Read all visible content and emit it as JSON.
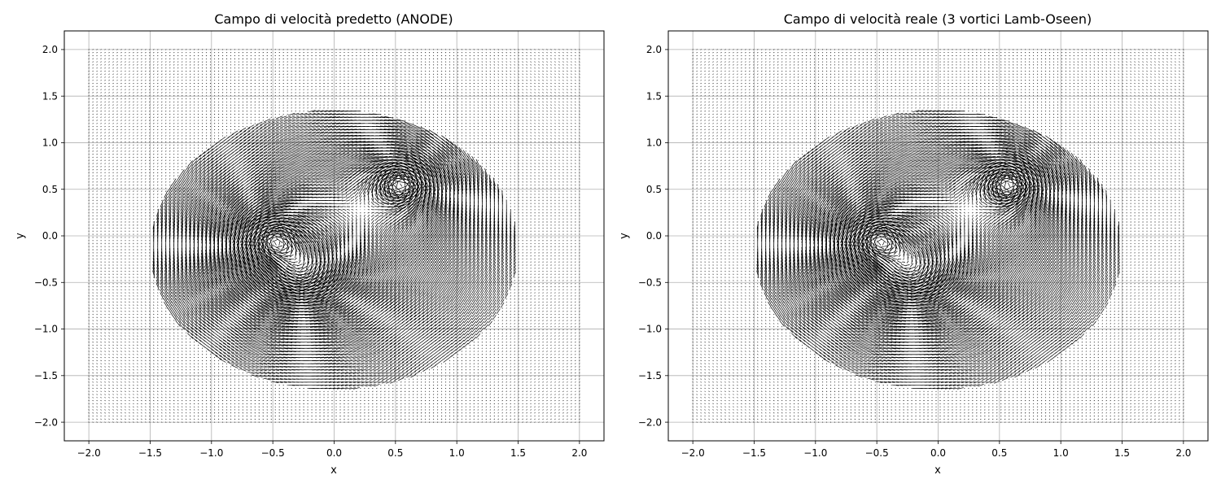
{
  "chart_data": [
    {
      "type": "quiver",
      "title": "Campo di velocità predetto (ANODE)",
      "xlabel": "x",
      "ylabel": "y",
      "xlim": [
        -2.2,
        2.2
      ],
      "ylim": [
        -2.2,
        2.2
      ],
      "xticks": [
        -2.0,
        -1.5,
        -1.0,
        -0.5,
        0.0,
        0.5,
        1.0,
        1.5,
        2.0
      ],
      "yticks": [
        -2.0,
        -1.5,
        -1.0,
        -0.5,
        0.0,
        0.5,
        1.0,
        1.5,
        2.0
      ],
      "xtick_labels": [
        "−2.0",
        "−1.5",
        "−1.0",
        "−0.5",
        "0.0",
        "0.5",
        "1.0",
        "1.5",
        "2.0"
      ],
      "ytick_labels": [
        "−2.0",
        "−1.5",
        "−1.0",
        "−0.5",
        "0.0",
        "0.5",
        "1.0",
        "1.5",
        "2.0"
      ],
      "grid": true,
      "arrow_color": "#000000",
      "field_domain": {
        "x": [
          -2.0,
          2.0
        ],
        "y": [
          -2.0,
          2.0
        ]
      },
      "vortices": [
        {
          "x": -0.5,
          "y": -0.05,
          "core_radius": 0.12
        },
        {
          "x": -0.25,
          "y": -0.38,
          "core_radius": 0.2
        },
        {
          "x": 0.55,
          "y": 0.55,
          "core_radius": 0.1
        }
      ]
    },
    {
      "type": "quiver",
      "title": "Campo di velocità reale (3 vortici Lamb-Oseen)",
      "xlabel": "x",
      "ylabel": "y",
      "xlim": [
        -2.2,
        2.2
      ],
      "ylim": [
        -2.2,
        2.2
      ],
      "xticks": [
        -2.0,
        -1.5,
        -1.0,
        -0.5,
        0.0,
        0.5,
        1.0,
        1.5,
        2.0
      ],
      "yticks": [
        -2.0,
        -1.5,
        -1.0,
        -0.5,
        0.0,
        0.5,
        1.0,
        1.5,
        2.0
      ],
      "xtick_labels": [
        "−2.0",
        "−1.5",
        "−1.0",
        "−0.5",
        "0.0",
        "0.5",
        "1.0",
        "1.5",
        "2.0"
      ],
      "ytick_labels": [
        "−2.0",
        "−1.5",
        "−1.0",
        "−0.5",
        "0.0",
        "0.5",
        "1.0",
        "1.5",
        "2.0"
      ],
      "grid": true,
      "arrow_color": "#000000",
      "field_domain": {
        "x": [
          -2.0,
          2.0
        ],
        "y": [
          -2.0,
          2.0
        ]
      },
      "vortices": [
        {
          "x": -0.5,
          "y": -0.05,
          "core_radius": 0.12
        },
        {
          "x": -0.2,
          "y": -0.38,
          "core_radius": 0.2
        },
        {
          "x": 0.58,
          "y": 0.55,
          "core_radius": 0.1
        }
      ]
    }
  ]
}
